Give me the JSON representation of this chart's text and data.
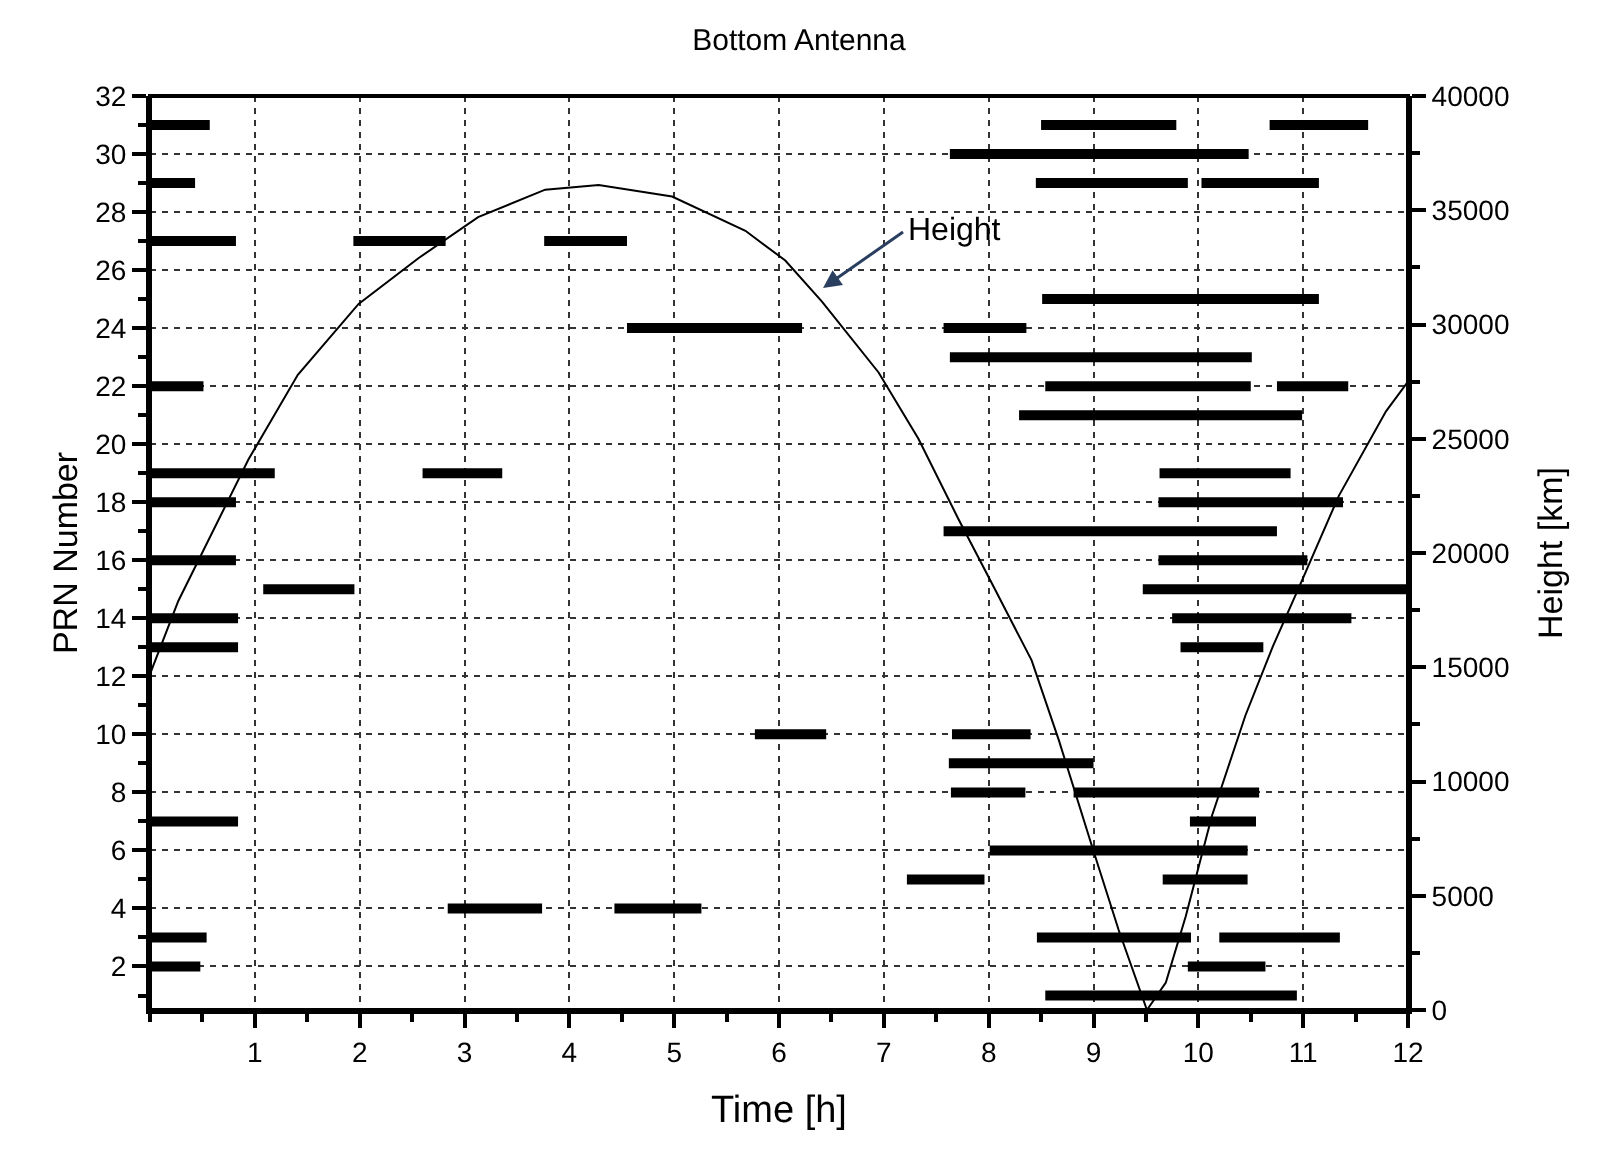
{
  "chart_data": {
    "type": "line",
    "title": "Bottom Antenna",
    "xlabel": "Time [h]",
    "ylabel": "PRN Number",
    "y2label": "Height [km]",
    "xlim": [
      0,
      12
    ],
    "xticks": [
      1,
      2,
      3,
      4,
      5,
      6,
      7,
      8,
      9,
      10,
      11,
      12
    ],
    "ylim": [
      0.5,
      32
    ],
    "yticks": [
      2,
      4,
      6,
      8,
      10,
      12,
      14,
      16,
      18,
      20,
      22,
      24,
      26,
      28,
      30,
      32
    ],
    "y2lim": [
      0,
      40000
    ],
    "y2ticks": [
      0,
      5000,
      10000,
      15000,
      20000,
      25000,
      30000,
      35000,
      40000
    ],
    "grid": true,
    "marker": "none",
    "line_style": "solid",
    "annotations": [
      "Height"
    ],
    "series": [
      {
        "color": "#000000",
        "x": [
          0,
          0.57
        ],
        "values": [
          31,
          31
        ]
      },
      {
        "color": "#000000",
        "x": [
          0,
          0.43
        ],
        "values": [
          29,
          29
        ]
      },
      {
        "color": "#000000",
        "x": [
          0,
          0.82
        ],
        "values": [
          27,
          27
        ]
      },
      {
        "color": "#000000",
        "x": [
          1.94,
          2.82
        ],
        "values": [
          27,
          27
        ]
      },
      {
        "color": "#000000",
        "x": [
          3.76,
          4.55
        ],
        "values": [
          27,
          27
        ]
      },
      {
        "color": "#000000",
        "x": [
          4.55,
          6.22
        ],
        "values": [
          24,
          24
        ]
      },
      {
        "color": "#000000",
        "x": [
          0,
          0.51
        ],
        "values": [
          22,
          22
        ]
      },
      {
        "color": "#000000",
        "x": [
          0,
          1.19
        ],
        "values": [
          19,
          19
        ]
      },
      {
        "color": "#000000",
        "x": [
          2.6,
          3.36
        ],
        "values": [
          19,
          19
        ]
      },
      {
        "color": "#000000",
        "x": [
          0,
          0.82
        ],
        "values": [
          18,
          18
        ]
      },
      {
        "color": "#000000",
        "x": [
          0,
          0.82
        ],
        "values": [
          16,
          16
        ]
      },
      {
        "color": "#000000",
        "x": [
          1.08,
          1.95
        ],
        "values": [
          15,
          15
        ]
      },
      {
        "color": "#000000",
        "x": [
          0,
          0.84
        ],
        "values": [
          14,
          14
        ]
      },
      {
        "color": "#000000",
        "x": [
          0,
          0.84
        ],
        "values": [
          13,
          13
        ]
      },
      {
        "color": "#000000",
        "x": [
          0,
          0.84
        ],
        "values": [
          7,
          7
        ]
      },
      {
        "color": "#000000",
        "x": [
          2.84,
          3.74
        ],
        "values": [
          4,
          4
        ]
      },
      {
        "color": "#000000",
        "x": [
          4.43,
          5.26
        ],
        "values": [
          4,
          4
        ]
      },
      {
        "color": "#000000",
        "x": [
          0,
          0.54
        ],
        "values": [
          3,
          3
        ]
      },
      {
        "color": "#000000",
        "x": [
          0,
          0.48
        ],
        "values": [
          2,
          2
        ]
      },
      {
        "color": "#000000",
        "x": [
          5.77,
          6.45
        ],
        "values": [
          10,
          10
        ]
      },
      {
        "color": "#000000",
        "x": [
          8.5,
          9.79
        ],
        "values": [
          31,
          31
        ]
      },
      {
        "color": "#000000",
        "x": [
          10.68,
          11.62
        ],
        "values": [
          31,
          31
        ]
      },
      {
        "color": "#000000",
        "x": [
          7.63,
          10.48
        ],
        "values": [
          30,
          30
        ]
      },
      {
        "color": "#000000",
        "x": [
          8.45,
          9.9
        ],
        "values": [
          29,
          29
        ]
      },
      {
        "color": "#000000",
        "x": [
          10.03,
          11.15
        ],
        "values": [
          29,
          29
        ]
      },
      {
        "color": "#000000",
        "x": [
          8.51,
          11.15
        ],
        "values": [
          25,
          25
        ]
      },
      {
        "color": "#000000",
        "x": [
          7.57,
          8.36
        ],
        "values": [
          24,
          24
        ]
      },
      {
        "color": "#000000",
        "x": [
          7.63,
          10.51
        ],
        "values": [
          23,
          23
        ]
      },
      {
        "color": "#000000",
        "x": [
          8.54,
          10.5
        ],
        "values": [
          22,
          22
        ]
      },
      {
        "color": "#000000",
        "x": [
          10.75,
          11.43
        ],
        "values": [
          22,
          22
        ]
      },
      {
        "color": "#000000",
        "x": [
          8.29,
          10.99
        ],
        "values": [
          21,
          21
        ]
      },
      {
        "color": "#000000",
        "x": [
          9.63,
          10.88
        ],
        "values": [
          19,
          19
        ]
      },
      {
        "color": "#000000",
        "x": [
          9.62,
          11.38
        ],
        "values": [
          18,
          18
        ]
      },
      {
        "color": "#000000",
        "x": [
          7.57,
          10.75
        ],
        "values": [
          17,
          17
        ]
      },
      {
        "color": "#000000",
        "x": [
          9.62,
          11.04
        ],
        "values": [
          16,
          16
        ]
      },
      {
        "color": "#000000",
        "x": [
          9.47,
          12
        ],
        "values": [
          15,
          15
        ]
      },
      {
        "color": "#000000",
        "x": [
          9.75,
          11.46
        ],
        "values": [
          14,
          14
        ]
      },
      {
        "color": "#000000",
        "x": [
          9.83,
          10.62
        ],
        "values": [
          13,
          13
        ]
      },
      {
        "color": "#000000",
        "x": [
          7.65,
          8.4
        ],
        "values": [
          10,
          10
        ]
      },
      {
        "color": "#000000",
        "x": [
          7.62,
          9.0
        ],
        "values": [
          9,
          9
        ]
      },
      {
        "color": "#000000",
        "x": [
          7.64,
          8.35
        ],
        "values": [
          8,
          8
        ]
      },
      {
        "color": "#000000",
        "x": [
          8.81,
          10.58
        ],
        "values": [
          8,
          8
        ]
      },
      {
        "color": "#000000",
        "x": [
          9.92,
          10.55
        ],
        "values": [
          7,
          7
        ]
      },
      {
        "color": "#000000",
        "x": [
          8.01,
          10.47
        ],
        "values": [
          6,
          6
        ]
      },
      {
        "color": "#000000",
        "x": [
          7.22,
          7.96
        ],
        "values": [
          5,
          5
        ]
      },
      {
        "color": "#000000",
        "x": [
          9.66,
          10.47
        ],
        "values": [
          5,
          5
        ]
      },
      {
        "color": "#000000",
        "x": [
          8.46,
          9.93
        ],
        "values": [
          3,
          3
        ]
      },
      {
        "color": "#000000",
        "x": [
          10.2,
          11.35
        ],
        "values": [
          3,
          3
        ]
      },
      {
        "color": "#000000",
        "x": [
          9.9,
          10.64
        ],
        "values": [
          2,
          2
        ]
      },
      {
        "color": "#000000",
        "x": [
          8.54,
          10.94
        ],
        "values": [
          1,
          1
        ]
      },
      {
        "type": "line",
        "axis": "y2",
        "color": "#000000",
        "x": [
          0,
          0.27,
          0.94,
          1.41,
          1.99,
          2.56,
          3.13,
          3.77,
          4.28,
          4.98,
          5.68,
          6.06,
          6.41,
          6.95,
          7.33,
          7.71,
          8.05,
          8.41,
          8.67,
          8.99,
          9.24,
          9.51,
          9.69,
          9.88,
          10.13,
          10.45,
          10.71,
          10.96,
          11.34,
          11.79,
          12
        ],
        "values": [
          14700,
          17900,
          24100,
          27800,
          30900,
          32900,
          34700,
          35900,
          36100,
          35600,
          34100,
          32800,
          31000,
          27900,
          25000,
          21500,
          18500,
          15300,
          11800,
          7100,
          3500,
          0,
          1200,
          4100,
          8500,
          12900,
          15900,
          18500,
          22500,
          26200,
          27500
        ]
      }
    ]
  }
}
